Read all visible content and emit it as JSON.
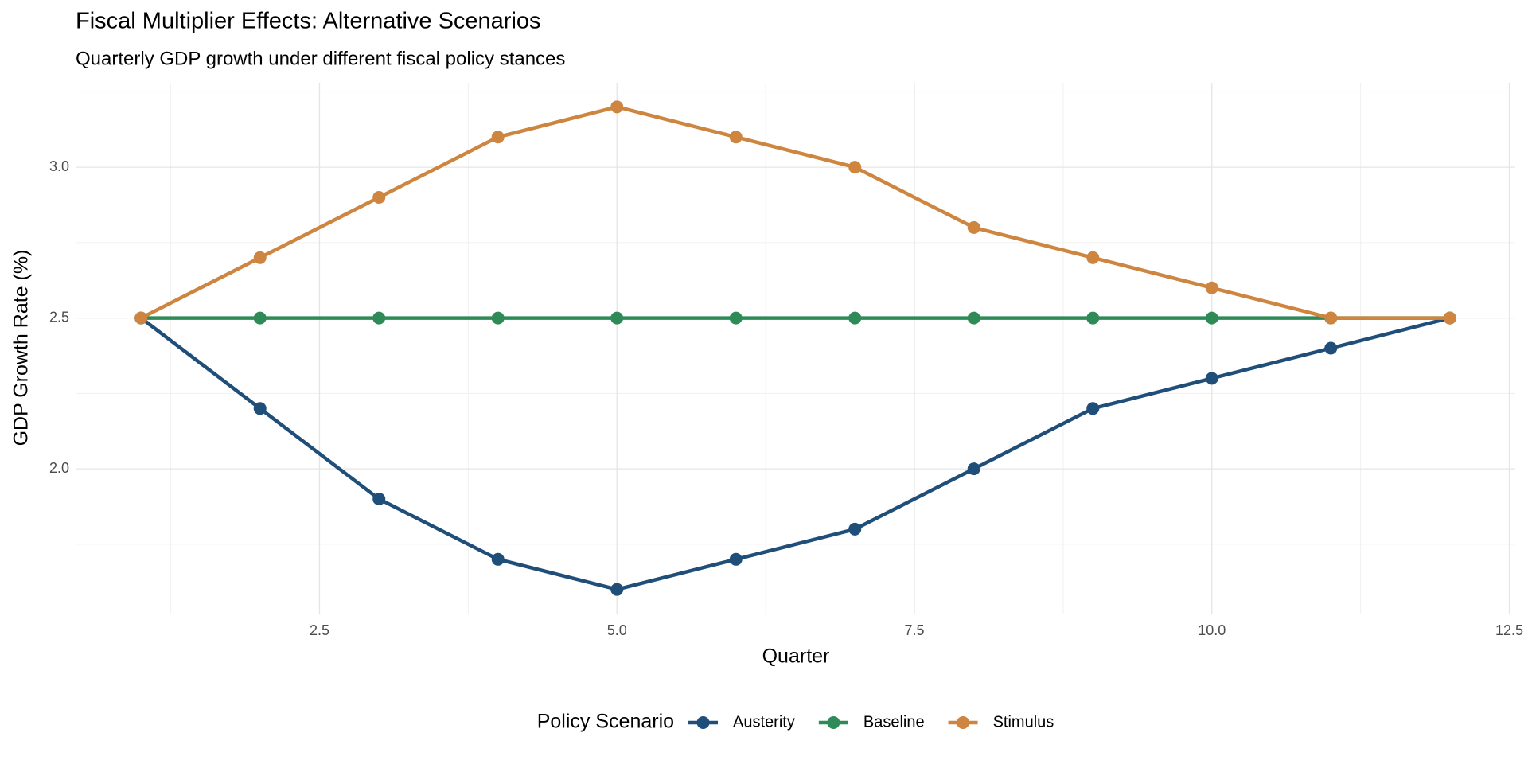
{
  "chart_data": {
    "type": "line",
    "title": "Fiscal Multiplier Effects: Alternative Scenarios",
    "subtitle": "Quarterly GDP growth under different fiscal policy stances",
    "x_label": "Quarter",
    "y_label": "GDP Growth Rate (%)",
    "legend_title": "Policy Scenario",
    "legend_position": "bottom",
    "grid": true,
    "x": [
      1,
      2,
      3,
      4,
      5,
      6,
      7,
      8,
      9,
      10,
      11,
      12
    ],
    "series": [
      {
        "name": "Austerity",
        "color": "#1f4e79",
        "values": [
          2.5,
          2.2,
          1.9,
          1.7,
          1.6,
          1.7,
          1.8,
          2.0,
          2.2,
          2.3,
          2.4,
          2.5
        ]
      },
      {
        "name": "Baseline",
        "color": "#2e8b57",
        "values": [
          2.5,
          2.5,
          2.5,
          2.5,
          2.5,
          2.5,
          2.5,
          2.5,
          2.5,
          2.5,
          2.5,
          2.5
        ]
      },
      {
        "name": "Stimulus",
        "color": "#cd853f",
        "values": [
          2.5,
          2.7,
          2.9,
          3.1,
          3.2,
          3.1,
          3.0,
          2.8,
          2.7,
          2.6,
          2.5,
          2.5
        ]
      }
    ],
    "xlim": [
      0.45,
      12.55
    ],
    "xticks": [
      2.5,
      {
        "value": 5,
        "label": "5.0"
      },
      7.5,
      {
        "value": 10,
        "label": "10.0"
      },
      12.5
    ],
    "ylim": [
      1.52,
      3.28
    ],
    "yticks": [
      {
        "value": 2,
        "label": "2.0"
      },
      2.5,
      {
        "value": 3,
        "label": "3.0"
      }
    ]
  }
}
